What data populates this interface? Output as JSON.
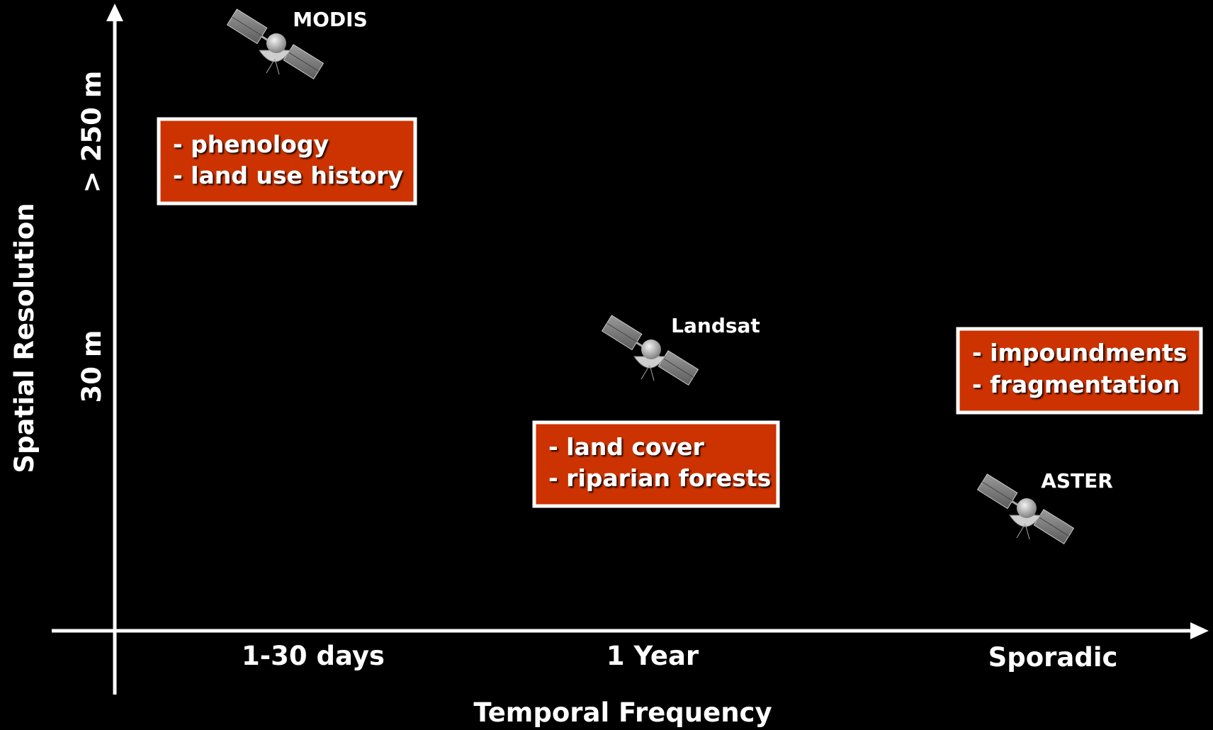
{
  "axes": {
    "x_label": "Temporal Frequency",
    "y_label": "Spatial Resolution",
    "x_ticks": [
      "1-30 days",
      "1 Year",
      "Sporadic"
    ],
    "y_ticks": [
      "30 m",
      "> 250 m"
    ]
  },
  "satellites": [
    {
      "label": "MODIS"
    },
    {
      "label": "Landsat"
    },
    {
      "label": "ASTER"
    }
  ],
  "boxes": [
    {
      "lines": [
        "- phenology",
        "- land use history"
      ]
    },
    {
      "lines": [
        "- land cover",
        "- riparian forests"
      ]
    },
    {
      "lines": [
        "- impoundments",
        "- fragmentation"
      ]
    }
  ]
}
